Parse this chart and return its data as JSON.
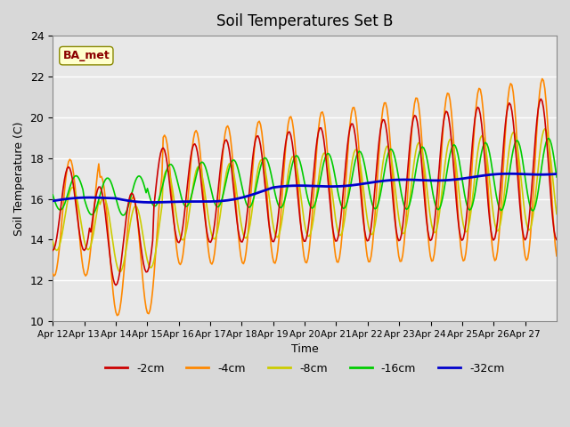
{
  "title": "Soil Temperatures Set B",
  "xlabel": "Time",
  "ylabel": "Soil Temperature (C)",
  "annotation": "BA_met",
  "ylim": [
    10,
    24
  ],
  "legend_labels": [
    "-2cm",
    "-4cm",
    "-8cm",
    "-16cm",
    "-32cm"
  ],
  "legend_colors": [
    "#cc0000",
    "#ff8800",
    "#cccc00",
    "#00cc00",
    "#0000cc"
  ],
  "x_tick_labels": [
    "Apr 12",
    "Apr 13",
    "Apr 14",
    "Apr 15",
    "Apr 16",
    "Apr 17",
    "Apr 18",
    "Apr 19",
    "Apr 20",
    "Apr 21",
    "Apr 22",
    "Apr 23",
    "Apr 24",
    "Apr 25",
    "Apr 26",
    "Apr 27"
  ],
  "n_days": 16,
  "hours_per_day": 24
}
